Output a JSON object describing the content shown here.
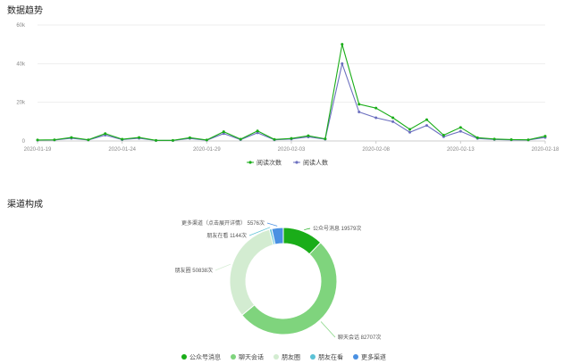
{
  "page": {
    "trend_title": "数据趋势",
    "channel_title": "渠道构成"
  },
  "chart_data": [
    {
      "type": "line",
      "x": [
        "2020-01-19",
        "2020-01-20",
        "2020-01-21",
        "2020-01-22",
        "2020-01-23",
        "2020-01-24",
        "2020-01-25",
        "2020-01-26",
        "2020-01-27",
        "2020-01-28",
        "2020-01-29",
        "2020-01-30",
        "2020-01-31",
        "2020-02-01",
        "2020-02-02",
        "2020-02-03",
        "2020-02-04",
        "2020-02-05",
        "2020-02-06",
        "2020-02-07",
        "2020-02-08",
        "2020-02-09",
        "2020-02-10",
        "2020-02-11",
        "2020-02-12",
        "2020-02-13",
        "2020-02-14",
        "2020-02-15",
        "2020-02-16",
        "2020-02-17",
        "2020-02-18"
      ],
      "xticks": [
        "2020-01-19",
        "2020-01-24",
        "2020-01-29",
        "2020-02-03",
        "2020-02-08",
        "2020-02-13",
        "2020-02-18"
      ],
      "yticks": [
        "0",
        "20k",
        "40k",
        "60k"
      ],
      "ylim": [
        0,
        60000
      ],
      "series": [
        {
          "name": "阅读次数",
          "color": "#1aad19",
          "values": [
            500,
            600,
            1800,
            600,
            3800,
            900,
            1800,
            300,
            300,
            1700,
            500,
            4800,
            900,
            5200,
            800,
            1300,
            2700,
            1100,
            50000,
            19000,
            17000,
            12000,
            6000,
            11000,
            3000,
            7000,
            1700,
            1000,
            700,
            600,
            2500
          ]
        },
        {
          "name": "阅读人数",
          "color": "#6b6fbf",
          "values": [
            400,
            500,
            1400,
            500,
            3000,
            700,
            1400,
            250,
            250,
            1300,
            400,
            3800,
            700,
            4200,
            600,
            1000,
            2100,
            900,
            40000,
            15000,
            12000,
            10000,
            4500,
            8000,
            2200,
            5000,
            1300,
            800,
            550,
            500,
            1800
          ]
        }
      ],
      "legend_position": "bottom"
    },
    {
      "type": "pie",
      "donut": true,
      "slices": [
        {
          "name": "公众号消息",
          "value": 19579,
          "label": "公众号消息 19579次",
          "color": "#1aad19"
        },
        {
          "name": "聊天会话",
          "value": 82707,
          "label": "聊天会话 82707次",
          "color": "#7fd47d"
        },
        {
          "name": "朋友圈",
          "value": 50838,
          "label": "朋友圈 50838次",
          "color": "#d3ecd1"
        },
        {
          "name": "朋友在看",
          "value": 1144,
          "label": "朋友在看 1144次",
          "color": "#5bc2d6"
        },
        {
          "name": "更多渠道",
          "value": 5576,
          "label": "更多渠道（点击展开详情） 5576次",
          "color": "#4a90e2"
        }
      ],
      "legend_position": "bottom"
    }
  ]
}
